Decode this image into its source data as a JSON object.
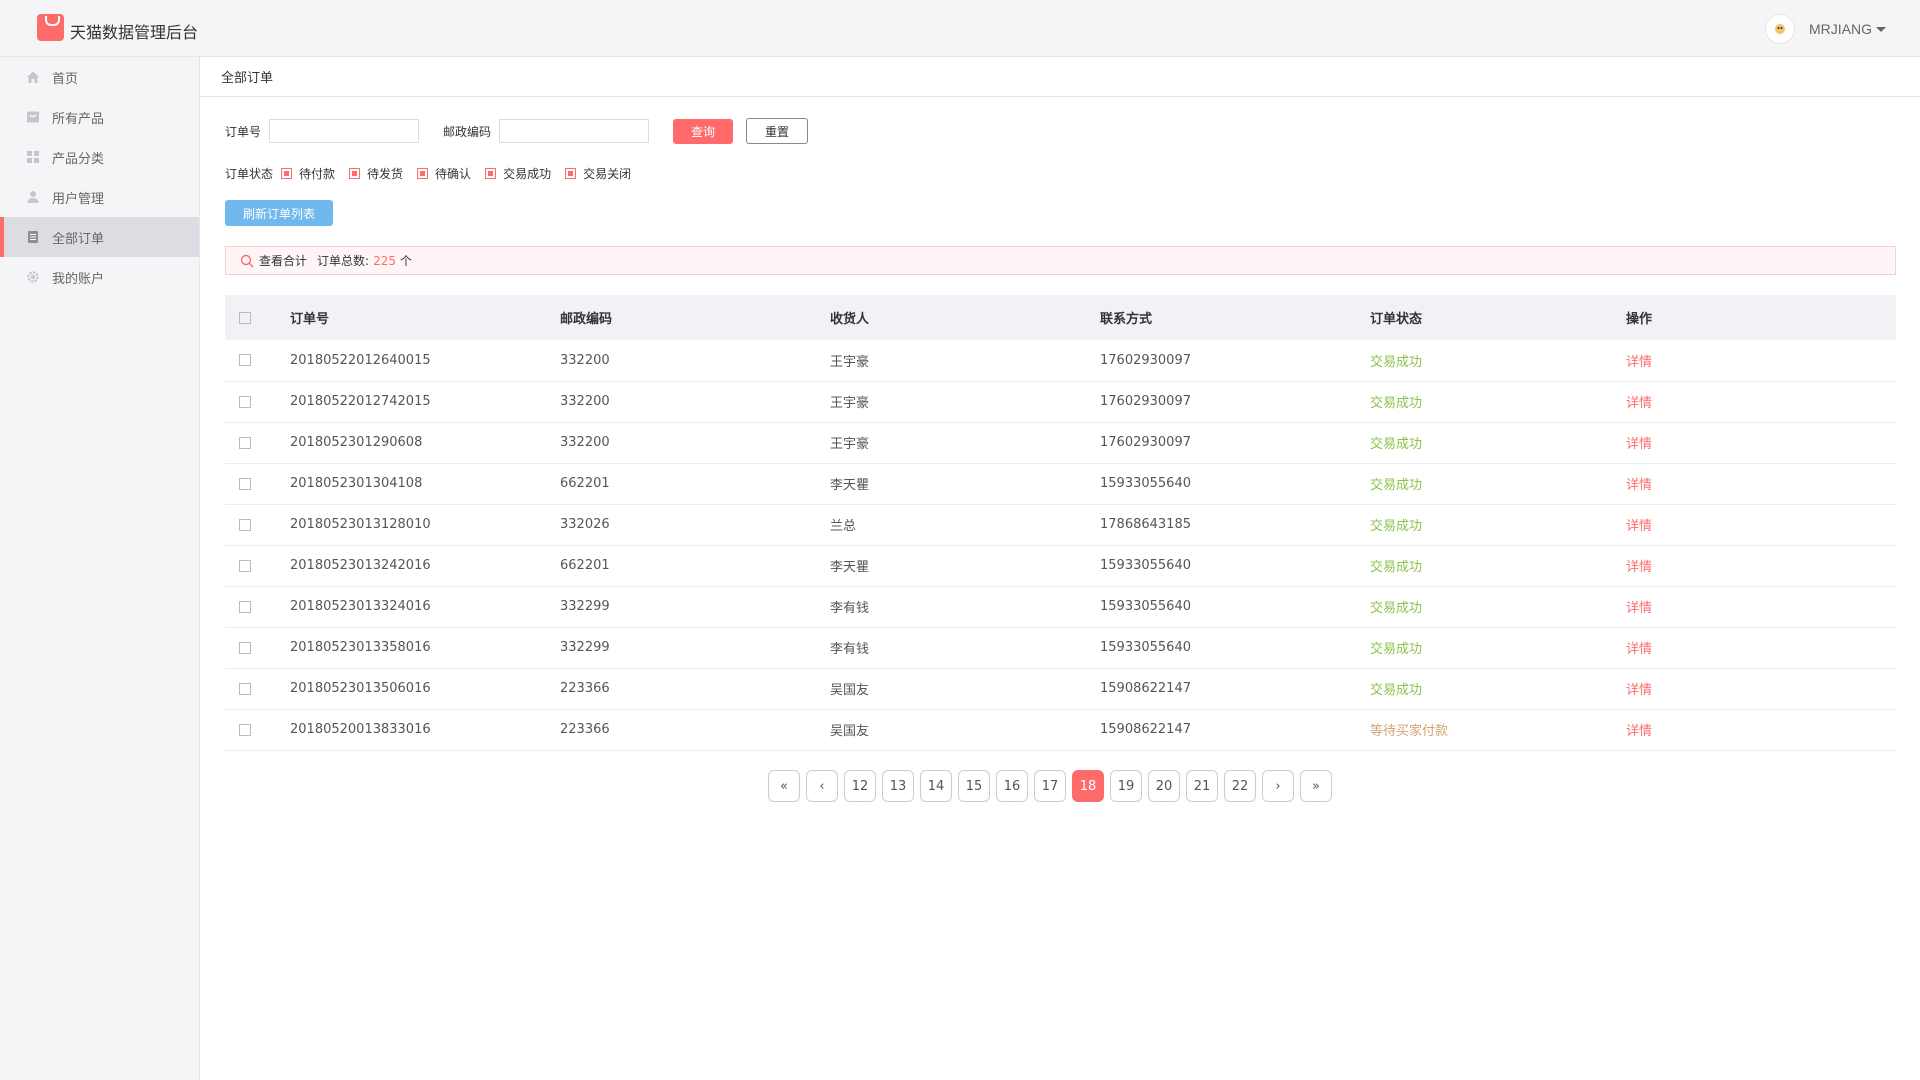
{
  "app": {
    "title": "天猫数据管理后台"
  },
  "user": {
    "name": "MRJIANG",
    "avatar_icon": "avatar-icon"
  },
  "colors": {
    "accent": "#ff6b6b",
    "success": "#8bc34a",
    "pending": "#d4a373",
    "refresh": "#6fb9ef"
  },
  "sidebar": {
    "items": [
      {
        "label": "首页",
        "icon": "home-icon"
      },
      {
        "label": "所有产品",
        "icon": "product-icon"
      },
      {
        "label": "产品分类",
        "icon": "category-icon"
      },
      {
        "label": "用户管理",
        "icon": "user-icon"
      },
      {
        "label": "全部订单",
        "icon": "order-icon",
        "active": true
      },
      {
        "label": "我的账户",
        "icon": "gear-icon"
      }
    ]
  },
  "breadcrumb": {
    "current": "全部订单"
  },
  "filters": {
    "order_no_label": "订单号",
    "order_no_value": "",
    "zip_label": "邮政编码",
    "zip_value": "",
    "query_label": "查询",
    "reset_label": "重置",
    "status_label": "订单状态",
    "status_options": [
      "待付款",
      "待发货",
      "待确认",
      "交易成功",
      "交易关闭"
    ],
    "refresh_label": "刷新订单列表"
  },
  "summary": {
    "view_label": "查看合计",
    "total_label": "订单总数:",
    "total_count": "225",
    "total_unit": "个"
  },
  "table": {
    "headers": [
      "订单号",
      "邮政编码",
      "收货人",
      "联系方式",
      "订单状态",
      "操作"
    ],
    "rows": [
      {
        "order": "2018052201264001​5",
        "zip": "332200",
        "name": "王宇豪",
        "phone": "17602930097",
        "status": "交易成功",
        "status_type": "success",
        "action": "详情"
      },
      {
        "order": "2018052201274201​5",
        "zip": "332200",
        "name": "王宇豪",
        "phone": "17602930097",
        "status": "交易成功",
        "status_type": "success",
        "action": "详情"
      },
      {
        "order": "2018052301290608",
        "zip": "332200",
        "name": "王宇豪",
        "phone": "17602930097",
        "status": "交易成功",
        "status_type": "success",
        "action": "详情"
      },
      {
        "order": "2018052301304108",
        "zip": "662201",
        "name": "李天瞿",
        "phone": "15933055640",
        "status": "交易成功",
        "status_type": "success",
        "action": "详情"
      },
      {
        "order": "2018052301312801​0",
        "zip": "332026",
        "name": "兰总",
        "phone": "17868643185",
        "status": "交易成功",
        "status_type": "success",
        "action": "详情"
      },
      {
        "order": "2018052301324201​6",
        "zip": "662201",
        "name": "李天瞿",
        "phone": "15933055640",
        "status": "交易成功",
        "status_type": "success",
        "action": "详情"
      },
      {
        "order": "2018052301332401​6",
        "zip": "332299",
        "name": "李有钱",
        "phone": "15933055640",
        "status": "交易成功",
        "status_type": "success",
        "action": "详情"
      },
      {
        "order": "2018052301335801​6",
        "zip": "332299",
        "name": "李有钱",
        "phone": "15933055640",
        "status": "交易成功",
        "status_type": "success",
        "action": "详情"
      },
      {
        "order": "2018052301350601​6",
        "zip": "223366",
        "name": "吴国友",
        "phone": "15908622147",
        "status": "交易成功",
        "status_type": "success",
        "action": "详情"
      },
      {
        "order": "2018052001383301​6",
        "zip": "223366",
        "name": "吴国友",
        "phone": "15908622147",
        "status": "等待买家付款",
        "status_type": "pending",
        "action": "详情"
      }
    ]
  },
  "pagination": {
    "first": "«",
    "prev": "‹",
    "pages": [
      "12",
      "13",
      "14",
      "15",
      "16",
      "17",
      "18",
      "19",
      "20",
      "21",
      "22"
    ],
    "current": "18",
    "next": "›",
    "last": "»"
  }
}
